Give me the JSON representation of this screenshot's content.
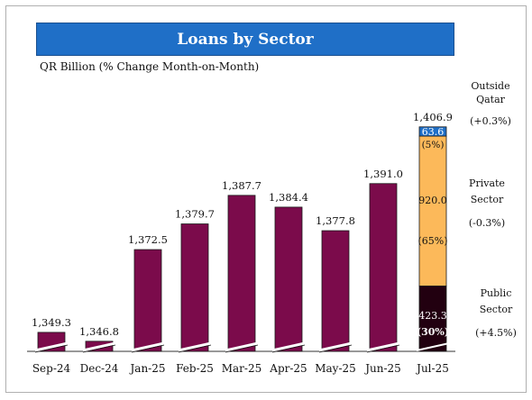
{
  "header": {
    "title": "Loans by Sector",
    "subtitle": "QR Billion (% Change Month-on-Month)"
  },
  "colors": {
    "title_bg": "#1f6fc7",
    "bar": "#7b0b4b",
    "outside_qatar": "#1f6fc7",
    "private_sector": "#fcb95a",
    "public_sector": "#220010"
  },
  "side_labels": {
    "outside": {
      "line1": "Outside",
      "line2": "Qatar",
      "change": "(+0.3%)"
    },
    "private": {
      "line1": "Private",
      "line2": "Sector",
      "change": "(-0.3%)"
    },
    "public": {
      "line1": "Public",
      "line2": "Sector",
      "change": "(+4.5%)"
    }
  },
  "chart_data": {
    "type": "bar",
    "categories": [
      "Sep-24",
      "Dec-24",
      "Jan-25",
      "Feb-25",
      "Mar-25",
      "Apr-25",
      "May-25",
      "Jun-25",
      "Jul-25"
    ],
    "values": [
      1349.3,
      1346.8,
      1372.5,
      1379.7,
      1387.7,
      1384.4,
      1377.8,
      1391.0,
      1406.9
    ],
    "labels": [
      "1,349.3",
      "1,346.8",
      "1,372.5",
      "1,379.7",
      "1,387.7",
      "1,384.4",
      "1,377.8",
      "1,391.0",
      "1,406.9"
    ],
    "axis_break": true,
    "stacked_last": {
      "category": "Jul-25",
      "segments": [
        {
          "name": "Public Sector",
          "value": 423.3,
          "label": "423.3",
          "share": "(30%)",
          "color": "#220010"
        },
        {
          "name": "Private Sector",
          "value": 920.0,
          "label": "920.0",
          "share": "(65%)",
          "color": "#fcb95a"
        },
        {
          "name": "Outside Qatar",
          "value": 63.6,
          "label": "63.6",
          "share": "(5%)",
          "color": "#1f6fc7"
        }
      ]
    }
  }
}
